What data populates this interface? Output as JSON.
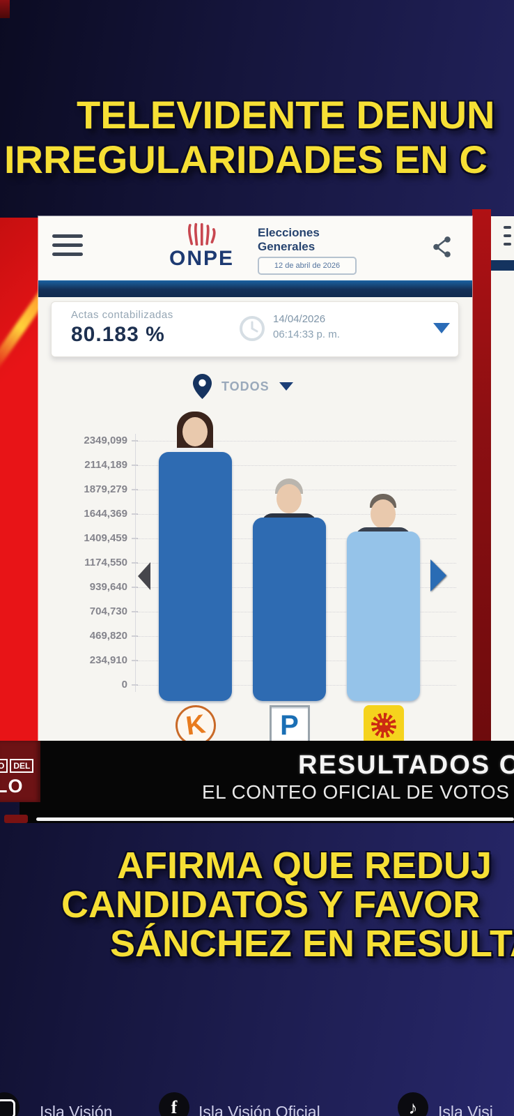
{
  "headline": {
    "line1": "TELEVIDENTE DENUN",
    "line2": "IRREGULARIDADES EN C"
  },
  "app": {
    "logo_text": "ONPE",
    "event_title_line1": "Elecciones",
    "event_title_line2": "Generales",
    "event_date_badge": "12 de abril de 2026",
    "actas": {
      "label": "Actas contabilizadas",
      "value": "80.183 %",
      "date": "14/04/2026",
      "time": "06:14:33 p. m."
    },
    "filter": {
      "label": "TODOS"
    }
  },
  "chart_data": {
    "type": "bar",
    "title": "",
    "xlabel": "",
    "ylabel": "",
    "y_ticks": [
      "2349,099",
      "2114,189",
      "1879,279",
      "1644,369",
      "1409,459",
      "1174,550",
      "939,640",
      "704,730",
      "469,820",
      "234,910",
      "0"
    ],
    "ylim": [
      0,
      2349099
    ],
    "tick_step": 234910,
    "categories": [
      "K",
      "P",
      "Sol"
    ],
    "values": [
      2240000,
      1610000,
      1475000
    ],
    "bar_colors": [
      "#2e6bb2",
      "#2e6bb2",
      "#95c3e9"
    ],
    "candidate_photos": [
      "woman-long-dark-hair",
      "older-man-gray-hair-suit",
      "man-dark-suit"
    ],
    "party_logos": [
      {
        "type": "k-circle",
        "letter": "K"
      },
      {
        "type": "p-square",
        "letter": "P"
      },
      {
        "type": "sun-square",
        "letter": ""
      }
    ],
    "grid": "faint dotted horizontal lines",
    "legend_position": "none"
  },
  "banner": {
    "badge": {
      "box1": "O",
      "box2": "DEL",
      "line2": "LO"
    },
    "title": "RESULTADOS O",
    "subtitle": "EL CONTEO OFICIAL DE VOTOS E"
  },
  "lower_headline": {
    "line1": "AFIRMA QUE REDUJ",
    "line2": "CANDIDATOS Y FAVOR",
    "line3": "SÁNCHEZ EN RESULTA"
  },
  "footer": {
    "social": [
      {
        "icon": "ring-social-icon",
        "label": "Isla Visión"
      },
      {
        "icon": "facebook-icon",
        "label": "Isla Visión Oficial"
      },
      {
        "icon": "tiktok-icon",
        "label": "Isla Visi"
      }
    ]
  },
  "colors": {
    "background_navy": "#181842",
    "headline_yellow": "#f6df35",
    "left_band_red": "#e81417",
    "right_band_red": "#8c1012",
    "bar_blue": "#2e6bb2",
    "bar_light_blue": "#95c3e9",
    "onpe_navy": "#1d3a72",
    "banner_black": "#060606",
    "badge_red": "#6d1315"
  }
}
